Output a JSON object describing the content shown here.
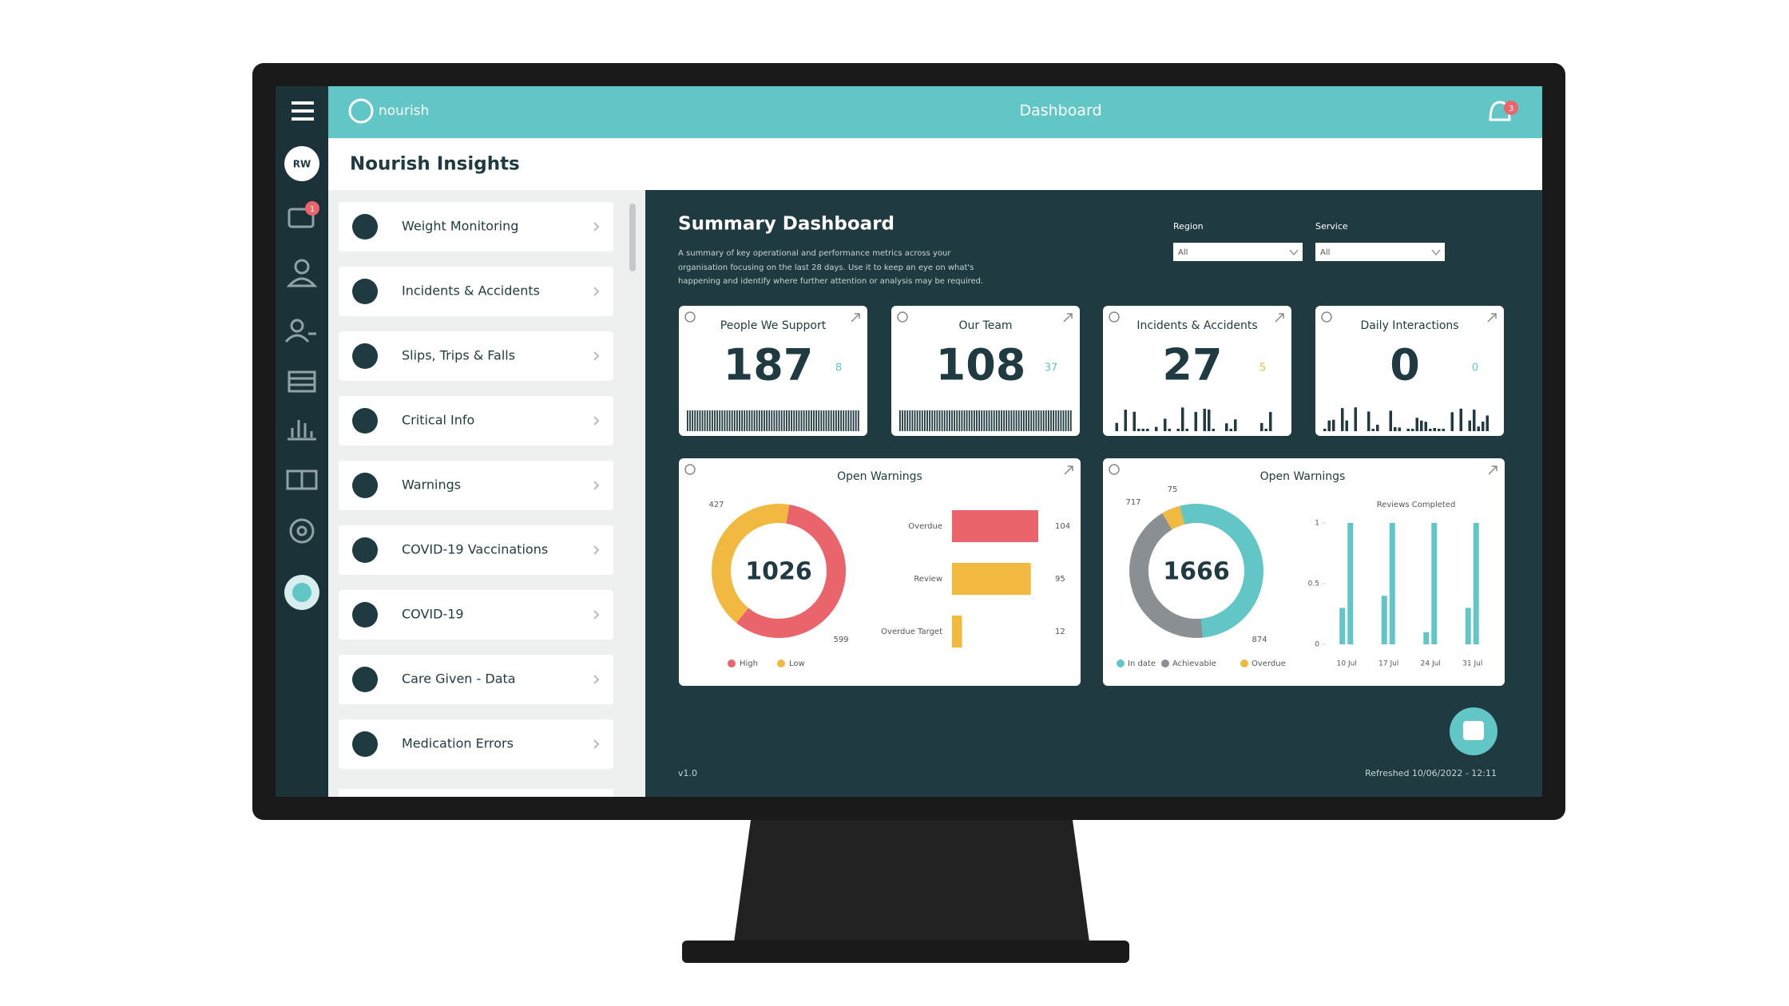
{
  "header": {
    "brand": "nourish",
    "title": "Dashboard",
    "notifications": "3"
  },
  "rail": {
    "avatar": "RW",
    "messages": "1"
  },
  "page_title": "Nourish Insights",
  "menu": [
    "Weight Monitoring",
    "Incidents & Accidents",
    "Slips, Trips & Falls",
    "Critical Info",
    "Warnings",
    "COVID-19 Vaccinations",
    "COVID-19",
    "Care Given - Data",
    "Medication Errors"
  ],
  "dashboard": {
    "title": "Summary Dashboard",
    "description": [
      "A summary of key operational and performance metrics across your",
      "organisation focusing on the last 28 days. Use it to keep an eye on what's",
      "happening and identify where further attention or analysis may be required."
    ],
    "filters": [
      {
        "label": "Region",
        "value": "All"
      },
      {
        "label": "Service",
        "value": "All"
      }
    ],
    "cards": [
      {
        "title": "People We Support",
        "value": 187,
        "change": 8
      },
      {
        "title": "Our Team",
        "value": 108,
        "change": 37
      },
      {
        "title": "Incidents & Accidents",
        "value": 27,
        "change": 5
      },
      {
        "title": "Daily Interactions",
        "value": 0,
        "change": 0
      }
    ]
  },
  "warnings": {
    "title": "Open Warnings",
    "total": 1026,
    "segments": [
      {
        "name": "High",
        "value": 599,
        "color": "#e9646b"
      },
      {
        "name": "Low",
        "value": 427,
        "color": "#f2b940"
      }
    ],
    "bars": [
      {
        "name": "Overdue",
        "value": 104,
        "color": "#e9646b"
      },
      {
        "name": "Review",
        "value": 95,
        "color": "#f2b940"
      },
      {
        "name": "Overdue Target",
        "value": 12,
        "color": "#f2b940"
      }
    ]
  },
  "reviews": {
    "title": "Open Warnings",
    "total": 1666,
    "segments": [
      {
        "name": "Overdue",
        "value": 75,
        "color": "#f2b940"
      },
      {
        "name": "In date",
        "value": 874,
        "color": "#62c6c6"
      },
      {
        "name": "Achievable",
        "value": 717,
        "color": "#8a8f93"
      }
    ],
    "legend_order": [
      1,
      2,
      0
    ],
    "chart_title": "Reviews Completed",
    "ylim": [
      0,
      1
    ],
    "yticks": [
      0,
      0.5,
      1
    ],
    "categories": [
      "10 Jul",
      "17 Jul",
      "24 Jul",
      "31 Jul"
    ],
    "bars": [
      [
        0.3,
        1
      ],
      [
        0.4,
        1
      ],
      [
        0.1,
        1
      ],
      [
        0.3,
        1
      ]
    ],
    "color": "#62c6c6"
  },
  "version": "v1.0",
  "refreshed": "Refreshed 10/06/2022 - 12:11"
}
